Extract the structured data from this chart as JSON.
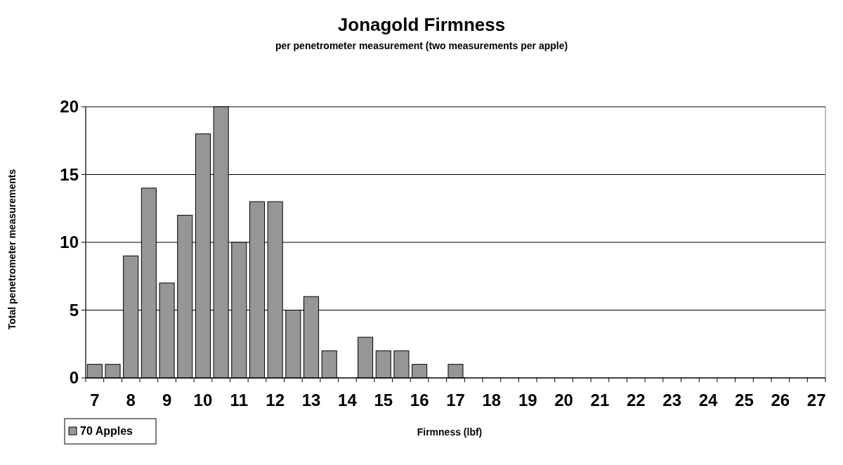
{
  "chart_data": {
    "type": "bar",
    "title": "Jonagold Firmness",
    "subtitle": "per penetrometer measurement (two measurements per apple)",
    "xlabel": "Firmness (lbf)",
    "ylabel": "Total penetrometer measurements",
    "categories": [
      "7",
      null,
      "8",
      null,
      "9",
      null,
      "10",
      null,
      "11",
      null,
      "12",
      null,
      "13",
      null,
      "14",
      null,
      "15",
      null,
      "16",
      null,
      "17",
      null,
      "18",
      null,
      "19",
      null,
      "20",
      null,
      "21",
      null,
      "22",
      null,
      "23",
      null,
      "24",
      null,
      "25",
      null,
      "26",
      null,
      "27"
    ],
    "series": [
      {
        "name": "70 Apples",
        "color": "#969696",
        "values": [
          1,
          1,
          9,
          14,
          7,
          12,
          18,
          20,
          10,
          13,
          13,
          5,
          6,
          2,
          0,
          3,
          2,
          2,
          1,
          0,
          1,
          0,
          0,
          0,
          0,
          0,
          0,
          0,
          0,
          0,
          0,
          0,
          0,
          0,
          0,
          0,
          0,
          0,
          0,
          0,
          0
        ]
      }
    ],
    "ylim": [
      0,
      20
    ],
    "yticks": [
      0,
      5,
      10,
      15,
      20
    ],
    "grid": "y",
    "legend": "bottom left"
  }
}
